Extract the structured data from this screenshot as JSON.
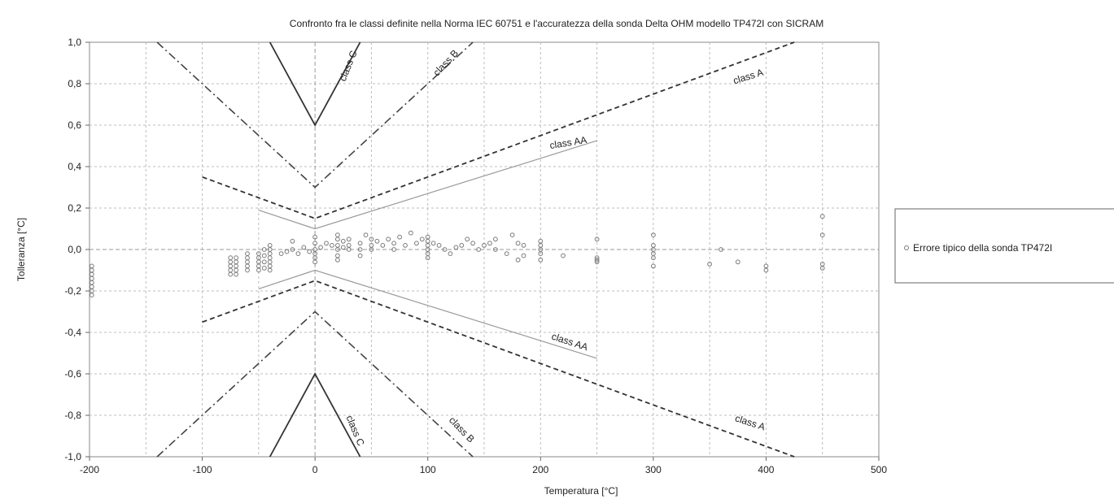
{
  "chart_data": {
    "type": "scatter",
    "title": "Confronto fra le classi definite nella Norma IEC 60751 e l'accuratezza della sonda Delta OHM modello TP472I con SICRAM",
    "xlabel": "Temperatura [°C]",
    "ylabel": "Tolleranza [°C]",
    "xlim": [
      -200,
      500
    ],
    "ylim": [
      -1.0,
      1.0
    ],
    "x_ticks": [
      -200,
      -100,
      0,
      100,
      200,
      300,
      400,
      500
    ],
    "x_tick_labels": [
      "-200",
      "-100",
      "0",
      "100",
      "200",
      "300",
      "400",
      "500"
    ],
    "y_ticks": [
      1.0,
      0.8,
      0.6,
      0.4,
      0.2,
      0.0,
      -0.2,
      -0.4,
      -0.6,
      -0.8,
      -1.0
    ],
    "y_tick_labels": [
      "1,0",
      "0,8",
      "0,6",
      "0,4",
      "0,2",
      "0,0",
      "-0,2",
      "-0,4",
      "-0,6",
      "-0,8",
      "-1,0"
    ],
    "grid": true,
    "legend_position": "right",
    "lines": [
      {
        "name": "class C",
        "style": "solid",
        "upper": [
          [
            -40,
            1.0
          ],
          [
            0,
            0.6
          ],
          [
            40,
            1.0
          ]
        ],
        "lower": [
          [
            -40,
            -1.0
          ],
          [
            0,
            -0.6
          ],
          [
            40,
            -1.0
          ]
        ]
      },
      {
        "name": "class B",
        "style": "dashdot",
        "upper": [
          [
            -140,
            1.0
          ],
          [
            0,
            0.3
          ],
          [
            140,
            1.0
          ]
        ],
        "lower": [
          [
            -140,
            -1.0
          ],
          [
            0,
            -0.3
          ],
          [
            140,
            -1.0
          ]
        ]
      },
      {
        "name": "class A",
        "style": "dashed",
        "upper": [
          [
            -100,
            0.35
          ],
          [
            0,
            0.15
          ],
          [
            425,
            1.0
          ]
        ],
        "lower": [
          [
            -100,
            -0.35
          ],
          [
            0,
            -0.15
          ],
          [
            425,
            -1.0
          ]
        ]
      },
      {
        "name": "class AA",
        "style": "dotted",
        "upper": [
          [
            -50,
            0.19
          ],
          [
            0,
            0.1
          ],
          [
            250,
            0.525
          ]
        ],
        "lower": [
          [
            -50,
            -0.19
          ],
          [
            0,
            -0.1
          ],
          [
            250,
            -0.525
          ]
        ]
      }
    ],
    "annotations": [
      {
        "text": "class C",
        "x": 32,
        "y": 0.88,
        "angle": -68
      },
      {
        "text": "class B",
        "x": 118,
        "y": 0.89,
        "angle": -47
      },
      {
        "text": "class A",
        "x": 385,
        "y": 0.82,
        "angle": -17
      },
      {
        "text": "class AA",
        "x": 225,
        "y": 0.5,
        "angle": -9
      },
      {
        "text": "class AA",
        "x": 225,
        "y": -0.46,
        "angle": 18
      },
      {
        "text": "class A",
        "x": 385,
        "y": -0.85,
        "angle": 18
      },
      {
        "text": "class B",
        "x": 128,
        "y": -0.88,
        "angle": 46
      },
      {
        "text": "class C",
        "x": 33,
        "y": -0.88,
        "angle": 67
      }
    ],
    "series": [
      {
        "name": "Errore tipico della sonda TP472I",
        "points": [
          [
            -198,
            -0.08
          ],
          [
            -198,
            -0.1
          ],
          [
            -198,
            -0.12
          ],
          [
            -198,
            -0.14
          ],
          [
            -198,
            -0.16
          ],
          [
            -198,
            -0.18
          ],
          [
            -198,
            -0.2
          ],
          [
            -198,
            -0.22
          ],
          [
            -75,
            -0.04
          ],
          [
            -75,
            -0.06
          ],
          [
            -75,
            -0.08
          ],
          [
            -75,
            -0.1
          ],
          [
            -75,
            -0.12
          ],
          [
            -70,
            -0.04
          ],
          [
            -70,
            -0.06
          ],
          [
            -70,
            -0.08
          ],
          [
            -70,
            -0.1
          ],
          [
            -70,
            -0.12
          ],
          [
            -60,
            -0.02
          ],
          [
            -60,
            -0.04
          ],
          [
            -60,
            -0.06
          ],
          [
            -60,
            -0.08
          ],
          [
            -60,
            -0.1
          ],
          [
            -50,
            -0.02
          ],
          [
            -50,
            -0.04
          ],
          [
            -50,
            -0.06
          ],
          [
            -50,
            -0.08
          ],
          [
            -50,
            -0.1
          ],
          [
            -45,
            0.0
          ],
          [
            -45,
            -0.03
          ],
          [
            -45,
            -0.06
          ],
          [
            -45,
            -0.09
          ],
          [
            -40,
            0.02
          ],
          [
            -40,
            0.0
          ],
          [
            -40,
            -0.02
          ],
          [
            -40,
            -0.04
          ],
          [
            -40,
            -0.06
          ],
          [
            -40,
            -0.08
          ],
          [
            -40,
            -0.1
          ],
          [
            -30,
            -0.02
          ],
          [
            -25,
            -0.01
          ],
          [
            -20,
            0.0
          ],
          [
            -20,
            0.04
          ],
          [
            -15,
            -0.02
          ],
          [
            -10,
            0.01
          ],
          [
            -5,
            -0.01
          ],
          [
            0,
            0.06
          ],
          [
            0,
            0.03
          ],
          [
            0,
            0.0
          ],
          [
            0,
            -0.02
          ],
          [
            0,
            -0.04
          ],
          [
            0,
            -0.06
          ],
          [
            5,
            0.01
          ],
          [
            10,
            0.03
          ],
          [
            15,
            0.02
          ],
          [
            20,
            0.07
          ],
          [
            20,
            0.05
          ],
          [
            20,
            0.02
          ],
          [
            20,
            0.0
          ],
          [
            20,
            -0.03
          ],
          [
            20,
            -0.05
          ],
          [
            25,
            0.04
          ],
          [
            25,
            0.01
          ],
          [
            30,
            0.05
          ],
          [
            30,
            0.02
          ],
          [
            30,
            0.0
          ],
          [
            40,
            0.03
          ],
          [
            40,
            0.0
          ],
          [
            40,
            -0.03
          ],
          [
            45,
            0.07
          ],
          [
            50,
            0.05
          ],
          [
            50,
            0.02
          ],
          [
            50,
            0.0
          ],
          [
            55,
            0.04
          ],
          [
            60,
            0.02
          ],
          [
            65,
            0.05
          ],
          [
            70,
            0.03
          ],
          [
            70,
            0.0
          ],
          [
            75,
            0.06
          ],
          [
            80,
            0.02
          ],
          [
            85,
            0.08
          ],
          [
            90,
            0.03
          ],
          [
            95,
            0.05
          ],
          [
            100,
            0.06
          ],
          [
            100,
            0.04
          ],
          [
            100,
            0.02
          ],
          [
            100,
            0.0
          ],
          [
            100,
            -0.02
          ],
          [
            100,
            -0.04
          ],
          [
            105,
            0.03
          ],
          [
            110,
            0.02
          ],
          [
            115,
            0.0
          ],
          [
            120,
            -0.02
          ],
          [
            125,
            0.01
          ],
          [
            130,
            0.02
          ],
          [
            135,
            0.05
          ],
          [
            140,
            0.03
          ],
          [
            145,
            0.0
          ],
          [
            150,
            0.02
          ],
          [
            155,
            0.03
          ],
          [
            160,
            0.05
          ],
          [
            160,
            0.0
          ],
          [
            170,
            -0.02
          ],
          [
            175,
            0.07
          ],
          [
            180,
            0.03
          ],
          [
            180,
            -0.05
          ],
          [
            185,
            0.02
          ],
          [
            185,
            -0.03
          ],
          [
            200,
            0.04
          ],
          [
            200,
            0.02
          ],
          [
            200,
            0.0
          ],
          [
            200,
            -0.02
          ],
          [
            200,
            -0.05
          ],
          [
            220,
            -0.03
          ],
          [
            250,
            0.05
          ],
          [
            250,
            -0.04
          ],
          [
            250,
            -0.05
          ],
          [
            250,
            -0.06
          ],
          [
            300,
            0.07
          ],
          [
            300,
            0.02
          ],
          [
            300,
            0.0
          ],
          [
            300,
            -0.02
          ],
          [
            300,
            -0.04
          ],
          [
            300,
            -0.08
          ],
          [
            350,
            -0.07
          ],
          [
            360,
            0.0
          ],
          [
            375,
            -0.06
          ],
          [
            400,
            -0.08
          ],
          [
            400,
            -0.1
          ],
          [
            450,
            0.16
          ],
          [
            450,
            0.07
          ],
          [
            450,
            -0.07
          ],
          [
            450,
            -0.09
          ]
        ]
      }
    ]
  }
}
